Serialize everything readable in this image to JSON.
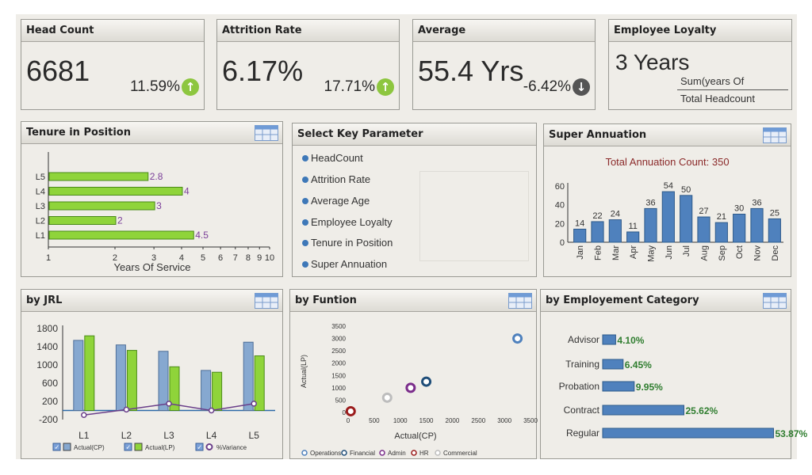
{
  "kpis": {
    "headcount": {
      "title": "Head Count",
      "value": "6681",
      "change": "11.59%",
      "direction": "up"
    },
    "attrition": {
      "title": "Attrition Rate",
      "value": "6.17%",
      "change": "17.71%",
      "direction": "up"
    },
    "average": {
      "title": "Average",
      "value": "55.4 Yrs",
      "change": "-6.42%",
      "direction": "down"
    },
    "loyalty": {
      "title": "Employee Loyalty",
      "value": "3 Years",
      "formula_line1": "Sum(years Of",
      "formula_line2": "Total Headcount"
    }
  },
  "tenure": {
    "title": "Tenure in Position",
    "xlabel": "Years Of Service",
    "ticks": [
      "1",
      "2",
      "3",
      "4",
      "5",
      "6",
      "7",
      "8",
      "9",
      "10"
    ]
  },
  "params": {
    "title": "Select Key Parameter",
    "items": [
      "HeadCount",
      "Attrition Rate",
      "Average Age",
      "Employee Loyalty",
      "Tenure in Position",
      "Super Annuation"
    ]
  },
  "super": {
    "title": "Super Annuation",
    "subtitle": "Total Annuation Count: 350"
  },
  "jrl": {
    "title": "by JRL",
    "legend": [
      "Actual(CP)",
      "Actual(LP)",
      "%Variance"
    ]
  },
  "funtion": {
    "title": "by Funtion",
    "xlabel": "Actual(CP)",
    "ylabel": "Actual(LP)",
    "legend": [
      "Operations",
      "Financial",
      "Admin",
      "HR",
      "Commercial"
    ]
  },
  "category": {
    "title": "by Employement Category"
  },
  "colors": {
    "green_bar": "#8fd43a",
    "blue_bar": "#4f81bd",
    "variance_line": "#6a3f8a",
    "up": "#8dc63f",
    "down": "#555555",
    "label_purple": "#7b3f99",
    "label_green": "#2f7d2f"
  },
  "chart_data": [
    {
      "type": "bar",
      "orientation": "horizontal",
      "categories": [
        "L1",
        "L2",
        "L3",
        "L4",
        "L5"
      ],
      "values": [
        4.5,
        2,
        3,
        4,
        2.8
      ],
      "xscale": "log",
      "xlim": [
        1,
        10
      ],
      "xlabel": "Years Of Service",
      "grid": false
    },
    {
      "type": "bar",
      "categories": [
        "Jan",
        "Feb",
        "Mar",
        "Apr",
        "May",
        "Jun",
        "Jul",
        "Aug",
        "Sep",
        "Oct",
        "Nov",
        "Dec"
      ],
      "values": [
        14,
        22,
        24,
        11,
        36,
        54,
        50,
        27,
        21,
        30,
        36,
        25
      ],
      "ylim": [
        0,
        60
      ],
      "yticks": [
        0,
        20,
        40,
        60
      ]
    },
    {
      "type": "bar",
      "categories": [
        "L1",
        "L2",
        "L3",
        "L4",
        "L5"
      ],
      "ylim": [
        -200,
        1800
      ],
      "yticks": [
        -200,
        200,
        600,
        1000,
        1400,
        1800
      ],
      "yticklabels": [
        "-200",
        "200",
        "600",
        "1000",
        "1400",
        "1800"
      ],
      "series": [
        {
          "name": "Actual(CP)",
          "values": [
            1540,
            1440,
            1300,
            880,
            1500
          ]
        },
        {
          "name": "Actual(LP)",
          "values": [
            1640,
            1320,
            960,
            840,
            1200
          ]
        },
        {
          "name": "%Variance",
          "type": "line",
          "values": [
            -100,
            20,
            150,
            0,
            150
          ]
        }
      ]
    },
    {
      "type": "scatter",
      "xlim": [
        0,
        3500
      ],
      "ylim": [
        0,
        3500
      ],
      "xticks": [
        0,
        500,
        1000,
        1500,
        2000,
        2500,
        3000,
        3500
      ],
      "yticks": [
        0,
        500,
        1000,
        1500,
        2000,
        2500,
        3000,
        3500
      ],
      "series": [
        {
          "name": "Operations",
          "points": [
            [
              3250,
              3000
            ]
          ]
        },
        {
          "name": "Financial",
          "points": [
            [
              1500,
              1250
            ]
          ]
        },
        {
          "name": "Admin",
          "points": [
            [
              1200,
              1000
            ]
          ]
        },
        {
          "name": "HR",
          "points": [
            [
              50,
              50
            ]
          ]
        },
        {
          "name": "Commercial",
          "points": [
            [
              750,
              600
            ]
          ]
        }
      ]
    },
    {
      "type": "bar",
      "orientation": "horizontal",
      "categories": [
        "Advisor",
        "Training",
        "Probation",
        "Contract",
        "Regular"
      ],
      "values": [
        4.1,
        6.45,
        9.95,
        25.62,
        53.87
      ],
      "labels": [
        "4.10%",
        "6.45%",
        "9.95%",
        "25.62%",
        "53.87%"
      ]
    }
  ]
}
